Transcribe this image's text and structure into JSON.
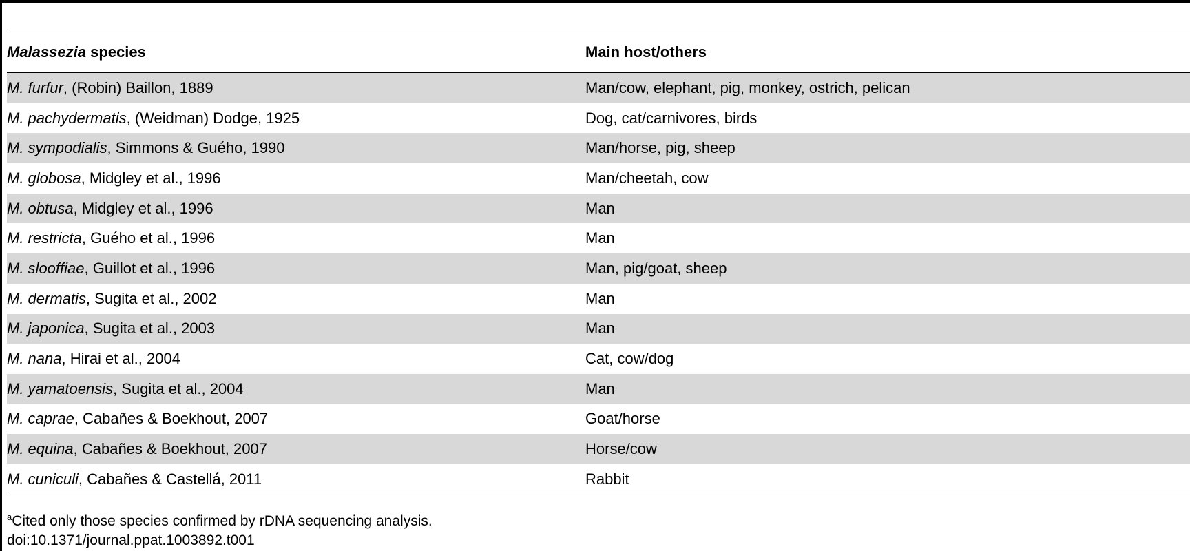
{
  "table": {
    "header": {
      "species_italic": "Malassezia",
      "species_rest": " species",
      "host": "Main host/others"
    },
    "rows": [
      {
        "genus": "M. furfur",
        "authority": ", (Robin) Baillon, 1889",
        "host": "Man/cow, elephant, pig, monkey, ostrich, pelican"
      },
      {
        "genus": "M. pachydermatis",
        "authority": ", (Weidman) Dodge, 1925",
        "host": "Dog, cat/carnivores, birds"
      },
      {
        "genus": "M. sympodialis",
        "authority": ", Simmons & Guého, 1990",
        "host": "Man/horse, pig, sheep"
      },
      {
        "genus": "M. globosa",
        "authority": ", Midgley et al., 1996",
        "host": "Man/cheetah, cow"
      },
      {
        "genus": "M. obtusa",
        "authority": ", Midgley et al., 1996",
        "host": "Man"
      },
      {
        "genus": "M. restricta",
        "authority": ", Guého et al., 1996",
        "host": "Man"
      },
      {
        "genus": "M. slooffiae",
        "authority": ", Guillot et al., 1996",
        "host": "Man, pig/goat, sheep"
      },
      {
        "genus": "M. dermatis",
        "authority": ", Sugita et al., 2002",
        "host": "Man"
      },
      {
        "genus": "M. japonica",
        "authority": ", Sugita et al., 2003",
        "host": "Man"
      },
      {
        "genus": "M. nana",
        "authority": ", Hirai et al., 2004",
        "host": "Cat, cow/dog"
      },
      {
        "genus": "M. yamatoensis",
        "authority": ", Sugita et al., 2004",
        "host": "Man"
      },
      {
        "genus": "M. caprae",
        "authority": ", Cabañes & Boekhout, 2007",
        "host": "Goat/horse"
      },
      {
        "genus": "M. equina",
        "authority": ", Cabañes & Boekhout, 2007",
        "host": "Horse/cow"
      },
      {
        "genus": "M. cuniculi",
        "authority": ", Cabañes & Castellá, 2011",
        "host": "Rabbit"
      }
    ]
  },
  "footnote": {
    "marker": "a",
    "text": "Cited only those species confirmed by rDNA sequencing analysis.",
    "doi": "doi:10.1371/journal.ppat.1003892.t001"
  },
  "colors": {
    "shaded_row": "#d8d8d8",
    "rule": "#000000"
  }
}
